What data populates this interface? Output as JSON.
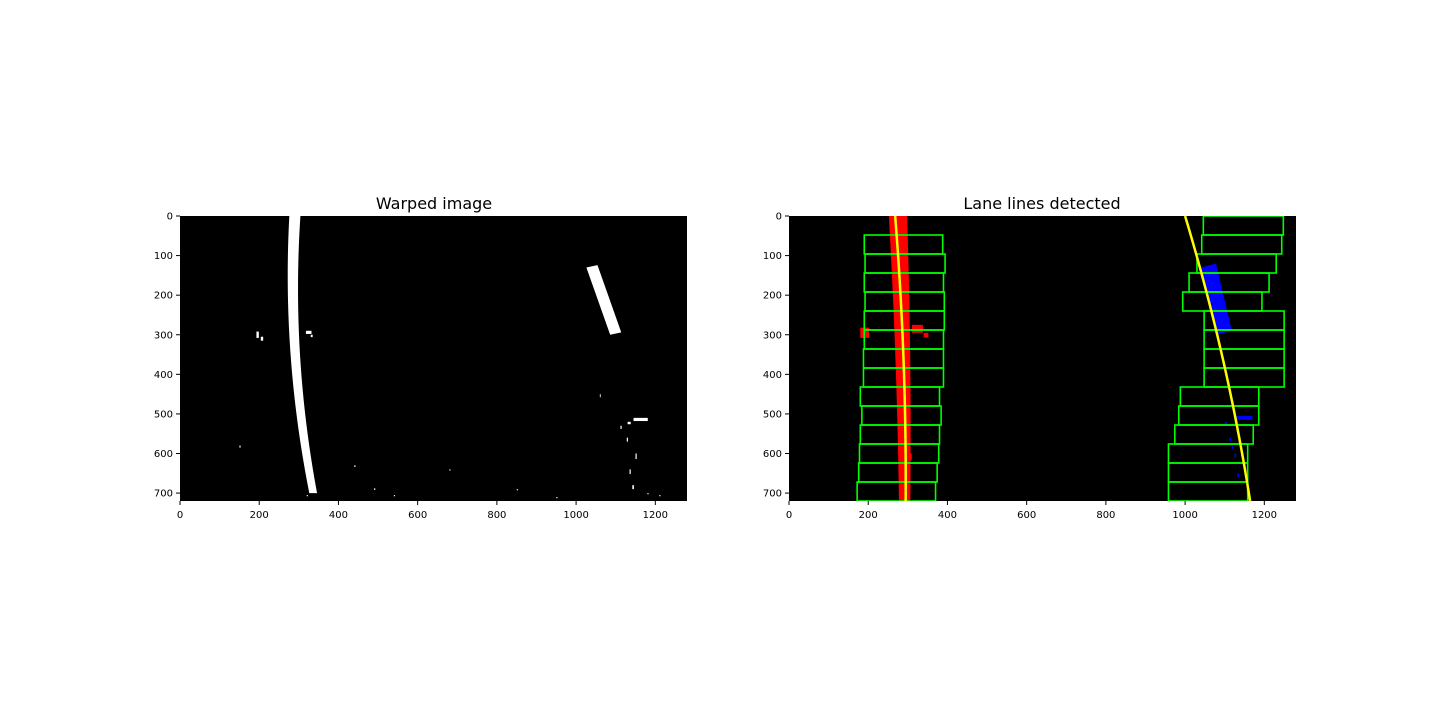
{
  "chart_data": [
    {
      "type": "image",
      "title": "Warped image",
      "xlim": [
        0,
        1280
      ],
      "ylim": [
        720,
        0
      ],
      "xticks": [
        0,
        200,
        400,
        600,
        800,
        1000,
        1200
      ],
      "yticks": [
        0,
        100,
        200,
        300,
        400,
        500,
        600,
        700
      ],
      "xtick_labels": [
        "0",
        "200",
        "400",
        "600",
        "800",
        "1000",
        "1200"
      ],
      "ytick_labels": [
        "0",
        "100",
        "200",
        "300",
        "400",
        "500",
        "600",
        "700"
      ],
      "background_color": "#000000",
      "foreground_color": "#ffffff",
      "left_line_poly": [
        0.00018,
        -0.06,
        272
      ],
      "right_blob": {
        "start": [
          1040,
          130
        ],
        "end": [
          1100,
          300
        ]
      }
    },
    {
      "type": "image",
      "title": "Lane lines detected",
      "xlim": [
        0,
        1280
      ],
      "ylim": [
        720,
        0
      ],
      "xticks": [
        0,
        200,
        400,
        600,
        800,
        1000,
        1200
      ],
      "yticks": [
        0,
        100,
        200,
        300,
        400,
        500,
        600,
        700
      ],
      "xtick_labels": [
        "0",
        "200",
        "400",
        "600",
        "800",
        "1000",
        "1200"
      ],
      "ytick_labels": [
        "0",
        "100",
        "200",
        "300",
        "400",
        "500",
        "600",
        "700"
      ],
      "background_color": "#000000",
      "left_pixels_color": "#ff0000",
      "right_pixels_color": "#0000ff",
      "window_color": "#00ff00",
      "fit_color": "#ffff00",
      "left_fit_poly": [
        -6e-05,
        0.08,
        268
      ],
      "right_fit_poly": [
        -0.0001,
        0.3,
        1000
      ],
      "left_windows": [
        [
          172,
          370
        ],
        [
          176,
          374
        ],
        [
          178,
          378
        ],
        [
          180,
          380
        ],
        [
          184,
          384
        ],
        [
          180,
          380
        ],
        [
          188,
          390
        ],
        [
          188,
          390
        ],
        [
          190,
          390
        ],
        [
          190,
          392
        ],
        [
          192,
          392
        ],
        [
          190,
          390
        ],
        [
          192,
          394
        ],
        [
          190,
          388
        ]
      ],
      "right_windows": [
        [
          958,
          1158
        ],
        [
          958,
          1158
        ],
        [
          958,
          1158
        ],
        [
          974,
          1172
        ],
        [
          984,
          1186
        ],
        [
          988,
          1186
        ],
        [
          1048,
          1250
        ],
        [
          1048,
          1250
        ],
        [
          1048,
          1250
        ],
        [
          1048,
          1250
        ],
        [
          994,
          1194
        ],
        [
          1010,
          1212
        ],
        [
          1030,
          1230
        ],
        [
          1042,
          1244
        ],
        [
          1046,
          1248
        ]
      ]
    }
  ]
}
